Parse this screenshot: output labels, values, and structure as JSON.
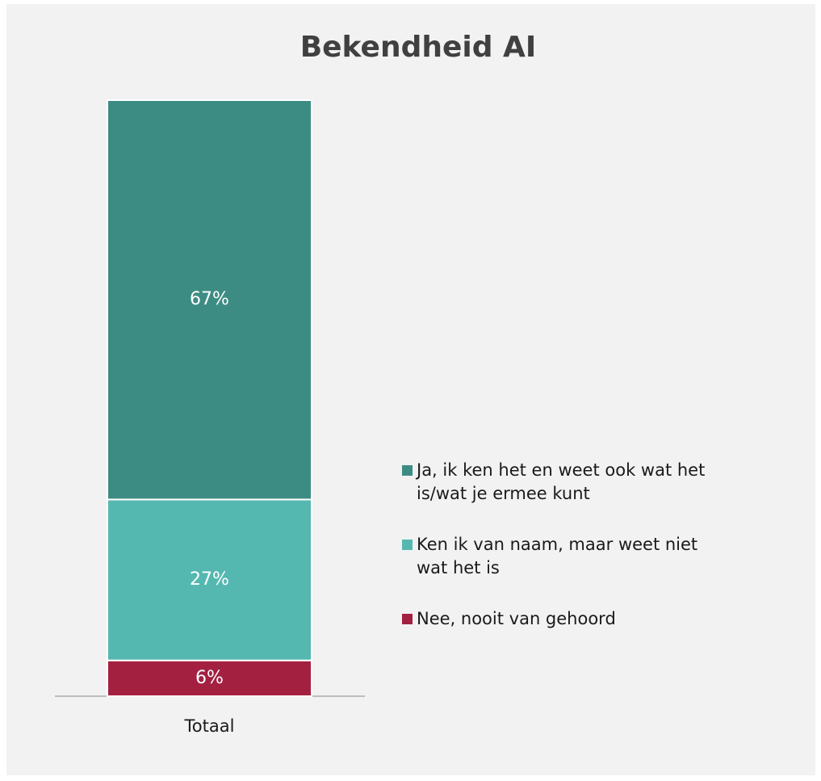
{
  "chart_data": {
    "type": "stacked_bar",
    "title": "Bekendheid AI",
    "categories": [
      "Totaal"
    ],
    "series": [
      {
        "name": "Ja, ik ken het en weet ook wat het is/wat je ermee kunt",
        "color": "#3d8c84",
        "values": [
          67
        ],
        "value_labels": [
          "67%"
        ]
      },
      {
        "name": "Ken ik van naam, maar weet niet wat het is",
        "color": "#55b8b0",
        "values": [
          27
        ],
        "value_labels": [
          "27%"
        ]
      },
      {
        "name": "Nee, nooit van gehoord",
        "color": "#a32041",
        "values": [
          6
        ],
        "value_labels": [
          "6%"
        ]
      }
    ],
    "legend": "right"
  }
}
